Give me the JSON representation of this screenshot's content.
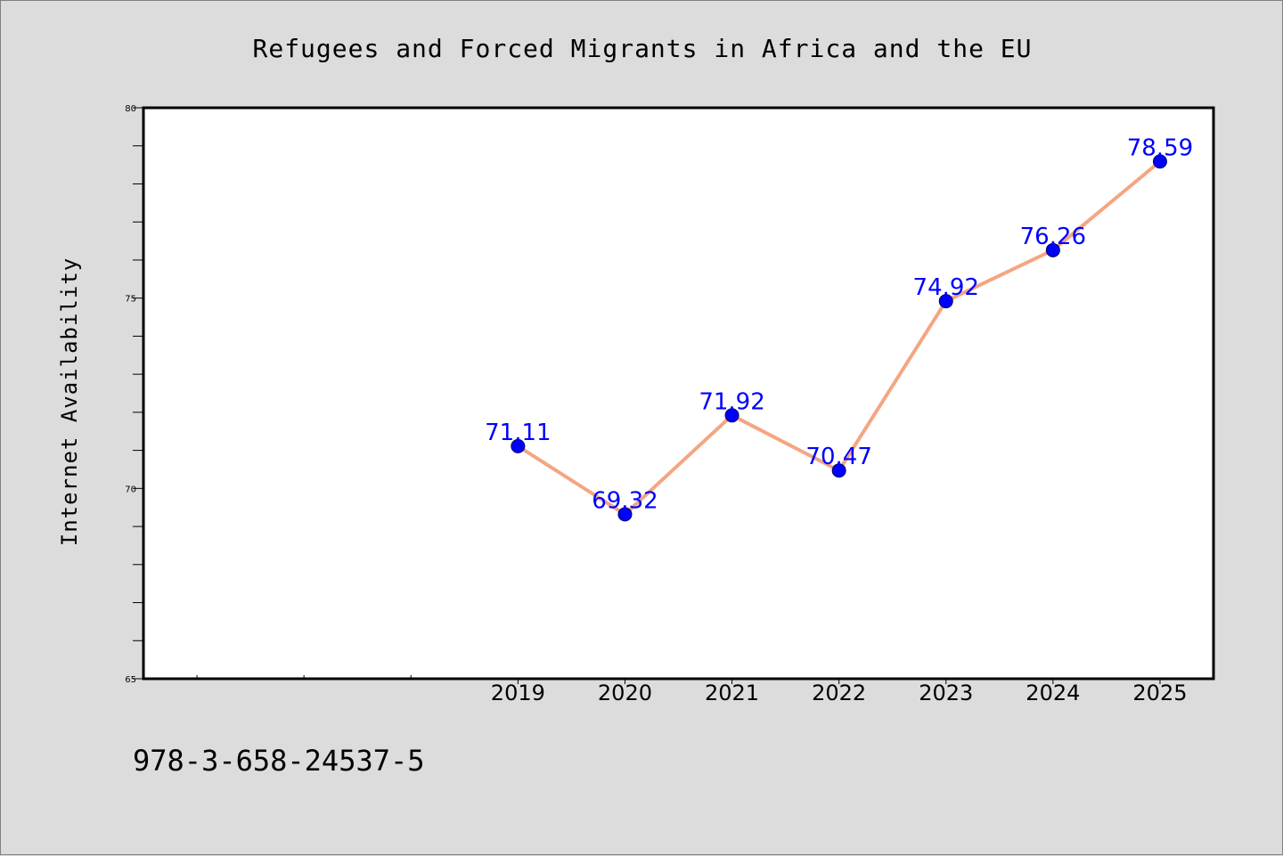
{
  "chart_data": {
    "type": "line",
    "title": "Refugees and Forced Migrants in Africa and the EU",
    "xlabel": "",
    "ylabel": "Internet Availability",
    "x": [
      "2019",
      "2020",
      "2021",
      "2022",
      "2023",
      "2024",
      "2025"
    ],
    "series": [
      {
        "values": [
          71.11,
          69.32,
          71.92,
          70.47,
          74.92,
          76.26,
          78.59
        ]
      }
    ],
    "data_labels": [
      "71.11",
      "69.32",
      "71.92",
      "70.47",
      "74.92",
      "76.26",
      "78.59"
    ],
    "ylim": [
      65,
      80
    ],
    "y_ticks": [
      "65",
      "70",
      "75",
      "80"
    ],
    "x_range": [
      2015.5,
      2025.5
    ],
    "x_minor_ticks": [
      2016,
      2017,
      2018
    ],
    "grid": false,
    "colors": {
      "line": "#f4a582",
      "marker": "#0000ff",
      "data_label": "#0000ff",
      "plot_background": "#ffffff",
      "figure_background": "#dcdcdc"
    }
  },
  "footer": {
    "isbn": "978-3-658-24537-5"
  }
}
